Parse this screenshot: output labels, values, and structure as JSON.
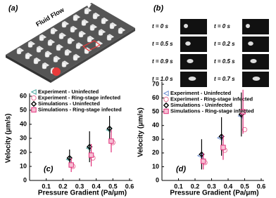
{
  "panel_a": {
    "label": "(a)",
    "flow_label": "Fluid Flow"
  },
  "panel_b": {
    "label": "(b)",
    "left_times": [
      "t = 0 s",
      "t = 0.5 s",
      "t = 0.9 s",
      "t = 1.0 s"
    ],
    "right_times": [
      "t = 0 s",
      "t = 0.2 s",
      "t = 0.5 s",
      "t = 0.7 s"
    ]
  },
  "chart_data": [
    {
      "type": "scatter",
      "label": "(c)",
      "x_label": "Pressure Gradient (Pa/μm)",
      "y_label": "Velocity (μm/s)",
      "xlim": [
        0,
        0.6
      ],
      "ylim": [
        0,
        60
      ],
      "xticks": [
        0.1,
        0.2,
        0.3,
        0.4,
        0.5,
        0.6
      ],
      "yticks": [
        0,
        10,
        20,
        30,
        40,
        50,
        60
      ],
      "legend": "upper-left",
      "series": [
        {
          "name": "Experiment - Uninfected",
          "color": "#4fa7a0",
          "marker": "triangle",
          "x": [
            0.235,
            0.355,
            0.475
          ],
          "values": [
            15,
            23,
            36
          ]
        },
        {
          "name": "Experiment - Ring-stage infected",
          "color": "#e8769a",
          "marker": "circle",
          "x": [
            0.26,
            0.38,
            0.5
          ],
          "values": [
            10,
            16,
            27
          ]
        },
        {
          "name": "Simulations - Uninfected",
          "color": "#000000",
          "marker": "diamond",
          "x": [
            0.24,
            0.36,
            0.48
          ],
          "values": [
            16,
            24,
            37
          ],
          "errors": [
            6,
            11,
            9
          ]
        },
        {
          "name": "Simulations - Ring-stage infected",
          "color": "#e0307a",
          "marker": "square",
          "x": [
            0.25,
            0.37,
            0.49
          ],
          "values": [
            11,
            18,
            28
          ],
          "errors": [
            5,
            8,
            8
          ]
        }
      ]
    },
    {
      "type": "scatter",
      "label": "(d)",
      "x_label": "Pressure Gradient (Pa/μm)",
      "y_label": "Velocity (μm/s)",
      "xlim": [
        0,
        0.6
      ],
      "ylim": [
        0,
        70
      ],
      "xticks": [
        0.1,
        0.2,
        0.3,
        0.4,
        0.5,
        0.6
      ],
      "yticks": [
        0,
        10,
        20,
        30,
        40,
        50,
        60,
        70
      ],
      "legend": "upper-left",
      "series": [
        {
          "name": "Experiment - Uninfected",
          "color": "#6d8fd0",
          "marker": "triangle",
          "x": [
            0.23,
            0.35,
            0.475
          ],
          "values": [
            18,
            31,
            47
          ]
        },
        {
          "name": "Experiment - Ring-stage infected",
          "color": "#e8769a",
          "marker": "circle",
          "x": [
            0.26,
            0.38,
            0.5
          ],
          "values": [
            13,
            22,
            37
          ]
        },
        {
          "name": "Simulations - Uninfected",
          "color": "#000000",
          "marker": "diamond",
          "x": [
            0.24,
            0.36,
            0.48
          ],
          "values": [
            19,
            32,
            48
          ],
          "errors": [
            11,
            14,
            16
          ]
        },
        {
          "name": "Simulations - Ring-stage infected",
          "color": "#e0307a",
          "marker": "square",
          "x": [
            0.25,
            0.37,
            0.49
          ],
          "values": [
            14,
            24,
            50
          ],
          "errors": [
            6,
            9,
            16
          ]
        }
      ]
    }
  ]
}
